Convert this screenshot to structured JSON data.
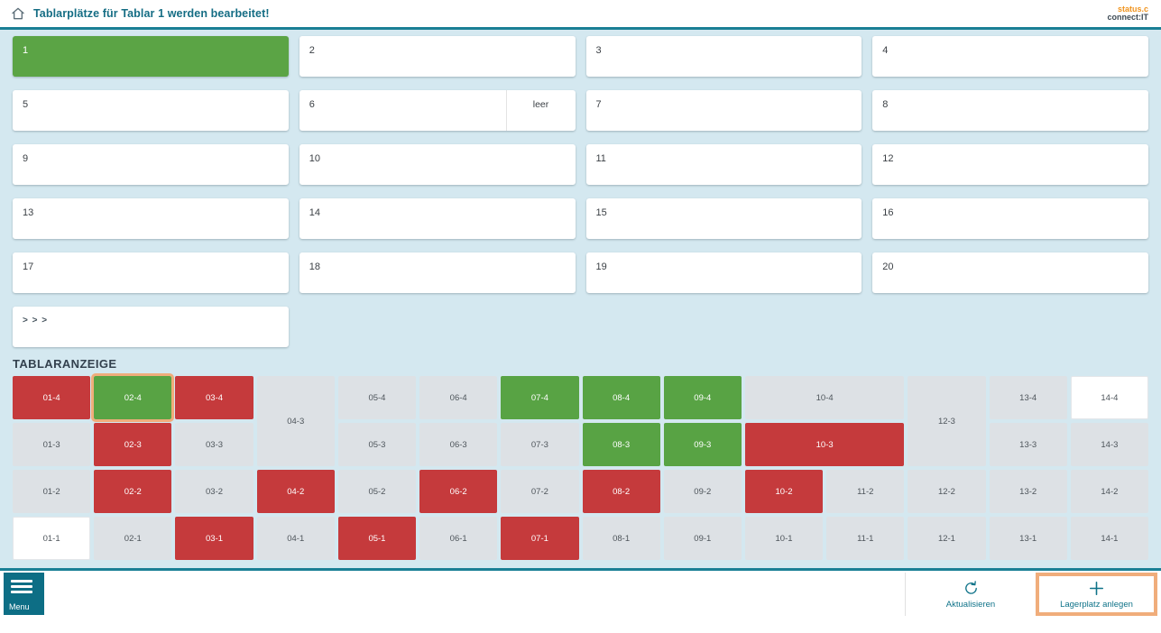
{
  "header": {
    "title": "Tablarplätze für Tablar 1 werden bearbeitet!",
    "logo_line1": "status.c",
    "logo_line2": "connect:IT"
  },
  "trays": {
    "cards": [
      {
        "label": "1",
        "state": "active"
      },
      {
        "label": "2",
        "state": "normal"
      },
      {
        "label": "3",
        "state": "normal"
      },
      {
        "label": "4",
        "state": "normal"
      },
      {
        "label": "5",
        "state": "normal"
      },
      {
        "label": "6",
        "state": "normal",
        "tag": "leer"
      },
      {
        "label": "7",
        "state": "normal"
      },
      {
        "label": "8",
        "state": "normal"
      },
      {
        "label": "9",
        "state": "normal"
      },
      {
        "label": "10",
        "state": "normal"
      },
      {
        "label": "11",
        "state": "normal"
      },
      {
        "label": "12",
        "state": "normal"
      },
      {
        "label": "13",
        "state": "normal"
      },
      {
        "label": "14",
        "state": "normal"
      },
      {
        "label": "15",
        "state": "normal"
      },
      {
        "label": "16",
        "state": "normal"
      },
      {
        "label": "17",
        "state": "normal"
      },
      {
        "label": "18",
        "state": "normal"
      },
      {
        "label": "19",
        "state": "normal"
      },
      {
        "label": "20",
        "state": "normal"
      },
      {
        "label": "> > >",
        "state": "more"
      }
    ]
  },
  "tablar": {
    "heading": "TABLARANZEIGE",
    "cells": [
      {
        "id": "01-4",
        "state": "red",
        "col": 1,
        "row": 1
      },
      {
        "id": "02-4",
        "state": "green",
        "col": 2,
        "row": 1,
        "selected": true
      },
      {
        "id": "03-4",
        "state": "red",
        "col": 3,
        "row": 1
      },
      {
        "id": "04-3",
        "state": "gray",
        "col": 4,
        "row": 1,
        "rowspan": 2
      },
      {
        "id": "05-4",
        "state": "gray",
        "col": 5,
        "row": 1
      },
      {
        "id": "06-4",
        "state": "gray",
        "col": 6,
        "row": 1
      },
      {
        "id": "07-4",
        "state": "green",
        "col": 7,
        "row": 1
      },
      {
        "id": "08-4",
        "state": "green",
        "col": 8,
        "row": 1
      },
      {
        "id": "09-4",
        "state": "green",
        "col": 9,
        "row": 1
      },
      {
        "id": "10-4",
        "state": "gray",
        "col": 10,
        "row": 1,
        "colspan": 2
      },
      {
        "id": "12-3",
        "state": "gray",
        "col": 12,
        "row": 1,
        "rowspan": 2
      },
      {
        "id": "13-4",
        "state": "gray",
        "col": 13,
        "row": 1
      },
      {
        "id": "14-4",
        "state": "white",
        "col": 14,
        "row": 1
      },
      {
        "id": "01-3",
        "state": "gray",
        "col": 1,
        "row": 2
      },
      {
        "id": "02-3",
        "state": "red",
        "col": 2,
        "row": 2
      },
      {
        "id": "03-3",
        "state": "gray",
        "col": 3,
        "row": 2
      },
      {
        "id": "05-3",
        "state": "gray",
        "col": 5,
        "row": 2
      },
      {
        "id": "06-3",
        "state": "gray",
        "col": 6,
        "row": 2
      },
      {
        "id": "07-3",
        "state": "gray",
        "col": 7,
        "row": 2
      },
      {
        "id": "08-3",
        "state": "green",
        "col": 8,
        "row": 2
      },
      {
        "id": "09-3",
        "state": "green",
        "col": 9,
        "row": 2
      },
      {
        "id": "10-3",
        "state": "red",
        "col": 10,
        "row": 2,
        "colspan": 2
      },
      {
        "id": "13-3",
        "state": "gray",
        "col": 13,
        "row": 2
      },
      {
        "id": "14-3",
        "state": "gray",
        "col": 14,
        "row": 2
      },
      {
        "id": "01-2",
        "state": "gray",
        "col": 1,
        "row": 3
      },
      {
        "id": "02-2",
        "state": "red",
        "col": 2,
        "row": 3
      },
      {
        "id": "03-2",
        "state": "gray",
        "col": 3,
        "row": 3
      },
      {
        "id": "04-2",
        "state": "red",
        "col": 4,
        "row": 3
      },
      {
        "id": "05-2",
        "state": "gray",
        "col": 5,
        "row": 3
      },
      {
        "id": "06-2",
        "state": "red",
        "col": 6,
        "row": 3
      },
      {
        "id": "07-2",
        "state": "gray",
        "col": 7,
        "row": 3
      },
      {
        "id": "08-2",
        "state": "red",
        "col": 8,
        "row": 3
      },
      {
        "id": "09-2",
        "state": "gray",
        "col": 9,
        "row": 3
      },
      {
        "id": "10-2",
        "state": "red",
        "col": 10,
        "row": 3
      },
      {
        "id": "11-2",
        "state": "gray",
        "col": 11,
        "row": 3
      },
      {
        "id": "12-2",
        "state": "gray",
        "col": 12,
        "row": 3
      },
      {
        "id": "13-2",
        "state": "gray",
        "col": 13,
        "row": 3
      },
      {
        "id": "14-2",
        "state": "gray",
        "col": 14,
        "row": 3
      },
      {
        "id": "01-1",
        "state": "white",
        "col": 1,
        "row": 4
      },
      {
        "id": "02-1",
        "state": "gray",
        "col": 2,
        "row": 4
      },
      {
        "id": "03-1",
        "state": "red",
        "col": 3,
        "row": 4
      },
      {
        "id": "04-1",
        "state": "gray",
        "col": 4,
        "row": 4
      },
      {
        "id": "05-1",
        "state": "red",
        "col": 5,
        "row": 4
      },
      {
        "id": "06-1",
        "state": "gray",
        "col": 6,
        "row": 4
      },
      {
        "id": "07-1",
        "state": "red",
        "col": 7,
        "row": 4
      },
      {
        "id": "08-1",
        "state": "gray",
        "col": 8,
        "row": 4
      },
      {
        "id": "09-1",
        "state": "gray",
        "col": 9,
        "row": 4
      },
      {
        "id": "10-1",
        "state": "gray",
        "col": 10,
        "row": 4
      },
      {
        "id": "11-1",
        "state": "gray",
        "col": 11,
        "row": 4
      },
      {
        "id": "12-1",
        "state": "gray",
        "col": 12,
        "row": 4
      },
      {
        "id": "13-1",
        "state": "gray",
        "col": 13,
        "row": 4
      },
      {
        "id": "14-1",
        "state": "gray",
        "col": 14,
        "row": 4
      }
    ]
  },
  "footer": {
    "menu_label": "Menu",
    "refresh_label": "Aktualisieren",
    "create_label": "Lagerplatz anlegen"
  },
  "colors": {
    "accent_teal": "#0f7389",
    "line_teal": "#1a7f95",
    "background_blue": "#d4e8f0",
    "occupied_red": "#c53a3c",
    "active_green": "#58a344",
    "slot_gray": "#dde1e5",
    "highlight_orange": "#f0ad7b",
    "logo_orange": "#f0941f"
  }
}
